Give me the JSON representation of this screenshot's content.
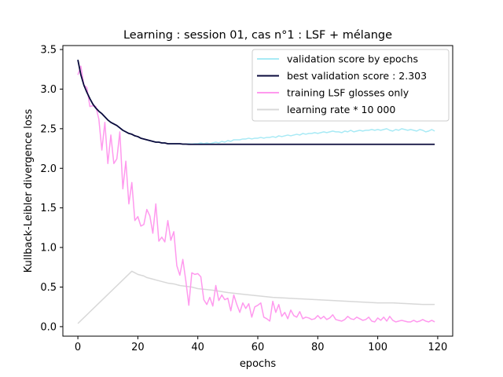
{
  "chart_data": {
    "type": "line",
    "title": "Learning : session 01, cas n°1 : LSF + mélange",
    "xlabel": "epochs",
    "ylabel": "Kullback-Leibler divergence loss",
    "xlim": [
      -5,
      125
    ],
    "ylim": [
      -0.12,
      3.55
    ],
    "xticks": [
      0,
      20,
      40,
      60,
      80,
      100,
      120
    ],
    "yticks": [
      0.0,
      0.5,
      1.0,
      1.5,
      2.0,
      2.5,
      3.0,
      3.5
    ],
    "xtick_labels": [
      "0",
      "20",
      "40",
      "60",
      "80",
      "100",
      "120"
    ],
    "ytick_labels": [
      "0.0",
      "0.5",
      "1.0",
      "1.5",
      "2.0",
      "2.5",
      "3.0",
      "3.5"
    ],
    "legend_position": "top-right",
    "grid": false,
    "series": [
      {
        "name": "validation score by epochs",
        "color": "#a8eaf5",
        "x": [
          0,
          1,
          2,
          3,
          4,
          5,
          6,
          7,
          8,
          9,
          10,
          11,
          12,
          13,
          14,
          15,
          16,
          17,
          18,
          19,
          20,
          21,
          22,
          23,
          24,
          25,
          26,
          27,
          28,
          29,
          30,
          31,
          32,
          33,
          34,
          35,
          36,
          37,
          38,
          39,
          40,
          41,
          42,
          43,
          44,
          45,
          46,
          47,
          48,
          49,
          50,
          51,
          52,
          53,
          54,
          55,
          56,
          57,
          58,
          59,
          60,
          61,
          62,
          63,
          64,
          65,
          66,
          67,
          68,
          69,
          70,
          71,
          72,
          73,
          74,
          75,
          76,
          77,
          78,
          79,
          80,
          81,
          82,
          83,
          84,
          85,
          86,
          87,
          88,
          89,
          90,
          91,
          92,
          93,
          94,
          95,
          96,
          97,
          98,
          99,
          100,
          101,
          102,
          103,
          104,
          105,
          106,
          107,
          108,
          109,
          110,
          111,
          112,
          113,
          114,
          115,
          116,
          117,
          118,
          119
        ],
        "y": [
          3.37,
          3.18,
          3.05,
          2.96,
          2.88,
          2.81,
          2.76,
          2.72,
          2.69,
          2.65,
          2.61,
          2.58,
          2.56,
          2.54,
          2.51,
          2.48,
          2.46,
          2.44,
          2.43,
          2.41,
          2.4,
          2.38,
          2.37,
          2.36,
          2.35,
          2.34,
          2.33,
          2.33,
          2.32,
          2.32,
          2.31,
          2.31,
          2.31,
          2.31,
          2.31,
          2.305,
          2.305,
          2.31,
          2.305,
          2.31,
          2.31,
          2.32,
          2.31,
          2.32,
          2.31,
          2.32,
          2.33,
          2.32,
          2.34,
          2.33,
          2.35,
          2.34,
          2.36,
          2.36,
          2.36,
          2.37,
          2.37,
          2.38,
          2.37,
          2.38,
          2.38,
          2.39,
          2.38,
          2.39,
          2.39,
          2.4,
          2.39,
          2.41,
          2.4,
          2.41,
          2.42,
          2.41,
          2.42,
          2.43,
          2.42,
          2.44,
          2.43,
          2.44,
          2.44,
          2.45,
          2.44,
          2.45,
          2.46,
          2.45,
          2.46,
          2.47,
          2.46,
          2.46,
          2.45,
          2.47,
          2.46,
          2.48,
          2.46,
          2.47,
          2.48,
          2.47,
          2.48,
          2.48,
          2.49,
          2.48,
          2.49,
          2.48,
          2.49,
          2.5,
          2.48,
          2.47,
          2.49,
          2.48,
          2.5,
          2.49,
          2.48,
          2.49,
          2.48,
          2.47,
          2.49,
          2.48,
          2.46,
          2.47,
          2.49,
          2.47
        ]
      },
      {
        "name": "best validation score : 2.303",
        "color": "#0a0a3c",
        "x": [
          0,
          1,
          2,
          3,
          4,
          5,
          6,
          7,
          8,
          9,
          10,
          11,
          12,
          13,
          14,
          15,
          16,
          17,
          18,
          19,
          20,
          21,
          22,
          23,
          24,
          25,
          26,
          27,
          28,
          29,
          30,
          31,
          32,
          33,
          34,
          35,
          36,
          37,
          38,
          39,
          40,
          119
        ],
        "y": [
          3.37,
          3.18,
          3.05,
          2.96,
          2.88,
          2.81,
          2.76,
          2.72,
          2.69,
          2.65,
          2.61,
          2.58,
          2.56,
          2.54,
          2.51,
          2.48,
          2.46,
          2.44,
          2.43,
          2.41,
          2.4,
          2.38,
          2.37,
          2.36,
          2.35,
          2.34,
          2.33,
          2.33,
          2.32,
          2.32,
          2.31,
          2.31,
          2.31,
          2.31,
          2.31,
          2.305,
          2.305,
          2.303,
          2.303,
          2.303,
          2.303,
          2.303
        ]
      },
      {
        "name": "training LSF glosses only",
        "color": "#ff99ee",
        "x": [
          0,
          1,
          2,
          3,
          4,
          5,
          6,
          7,
          8,
          9,
          10,
          11,
          12,
          13,
          14,
          15,
          16,
          17,
          18,
          19,
          20,
          21,
          22,
          23,
          24,
          25,
          26,
          27,
          28,
          29,
          30,
          31,
          32,
          33,
          34,
          35,
          36,
          37,
          38,
          39,
          40,
          41,
          42,
          43,
          44,
          45,
          46,
          47,
          48,
          49,
          50,
          51,
          52,
          53,
          54,
          55,
          56,
          57,
          58,
          59,
          60,
          61,
          62,
          63,
          64,
          65,
          66,
          67,
          68,
          69,
          70,
          71,
          72,
          73,
          74,
          75,
          76,
          77,
          78,
          79,
          80,
          81,
          82,
          83,
          84,
          85,
          86,
          87,
          88,
          89,
          90,
          91,
          92,
          93,
          94,
          95,
          96,
          97,
          98,
          99,
          100,
          101,
          102,
          103,
          104,
          105,
          106,
          107,
          108,
          109,
          110,
          111,
          112,
          113,
          114,
          115,
          116,
          117,
          118,
          119
        ],
        "y": [
          3.18,
          3.29,
          3.05,
          3.02,
          2.78,
          2.79,
          2.78,
          2.62,
          2.23,
          2.58,
          2.06,
          2.42,
          2.06,
          2.12,
          2.46,
          1.74,
          2.09,
          1.55,
          1.82,
          1.34,
          1.39,
          1.27,
          1.29,
          1.48,
          1.4,
          1.18,
          1.55,
          1.08,
          1.13,
          1.07,
          1.34,
          1.09,
          1.2,
          0.77,
          0.65,
          0.85,
          0.58,
          0.27,
          0.68,
          0.66,
          0.67,
          0.63,
          0.34,
          0.28,
          0.37,
          0.26,
          0.52,
          0.33,
          0.4,
          0.34,
          0.36,
          0.2,
          0.4,
          0.28,
          0.18,
          0.3,
          0.23,
          0.29,
          0.12,
          0.25,
          0.27,
          0.3,
          0.12,
          0.1,
          0.07,
          0.32,
          0.18,
          0.28,
          0.13,
          0.18,
          0.1,
          0.21,
          0.14,
          0.12,
          0.19,
          0.1,
          0.12,
          0.11,
          0.09,
          0.1,
          0.14,
          0.1,
          0.13,
          0.09,
          0.11,
          0.15,
          0.09,
          0.08,
          0.07,
          0.09,
          0.13,
          0.1,
          0.09,
          0.12,
          0.1,
          0.08,
          0.09,
          0.12,
          0.07,
          0.06,
          0.11,
          0.08,
          0.12,
          0.07,
          0.13,
          0.08,
          0.06,
          0.07,
          0.08,
          0.07,
          0.06,
          0.06,
          0.08,
          0.06,
          0.07,
          0.09,
          0.07,
          0.06,
          0.08,
          0.06
        ]
      },
      {
        "name": "learning rate * 10 000",
        "color": "#d8d8d8",
        "x": [
          0,
          18,
          19,
          20,
          21,
          22,
          23,
          24,
          25,
          26,
          27,
          28,
          29,
          30,
          32,
          34,
          36,
          38,
          40,
          45,
          50,
          55,
          60,
          65,
          70,
          75,
          80,
          85,
          90,
          95,
          100,
          105,
          110,
          115,
          119
        ],
        "y": [
          0.04,
          0.7,
          0.68,
          0.66,
          0.65,
          0.64,
          0.62,
          0.61,
          0.6,
          0.59,
          0.58,
          0.57,
          0.56,
          0.55,
          0.54,
          0.52,
          0.51,
          0.5,
          0.48,
          0.46,
          0.43,
          0.41,
          0.39,
          0.37,
          0.36,
          0.35,
          0.34,
          0.33,
          0.32,
          0.31,
          0.3,
          0.3,
          0.29,
          0.28,
          0.28
        ]
      }
    ]
  }
}
